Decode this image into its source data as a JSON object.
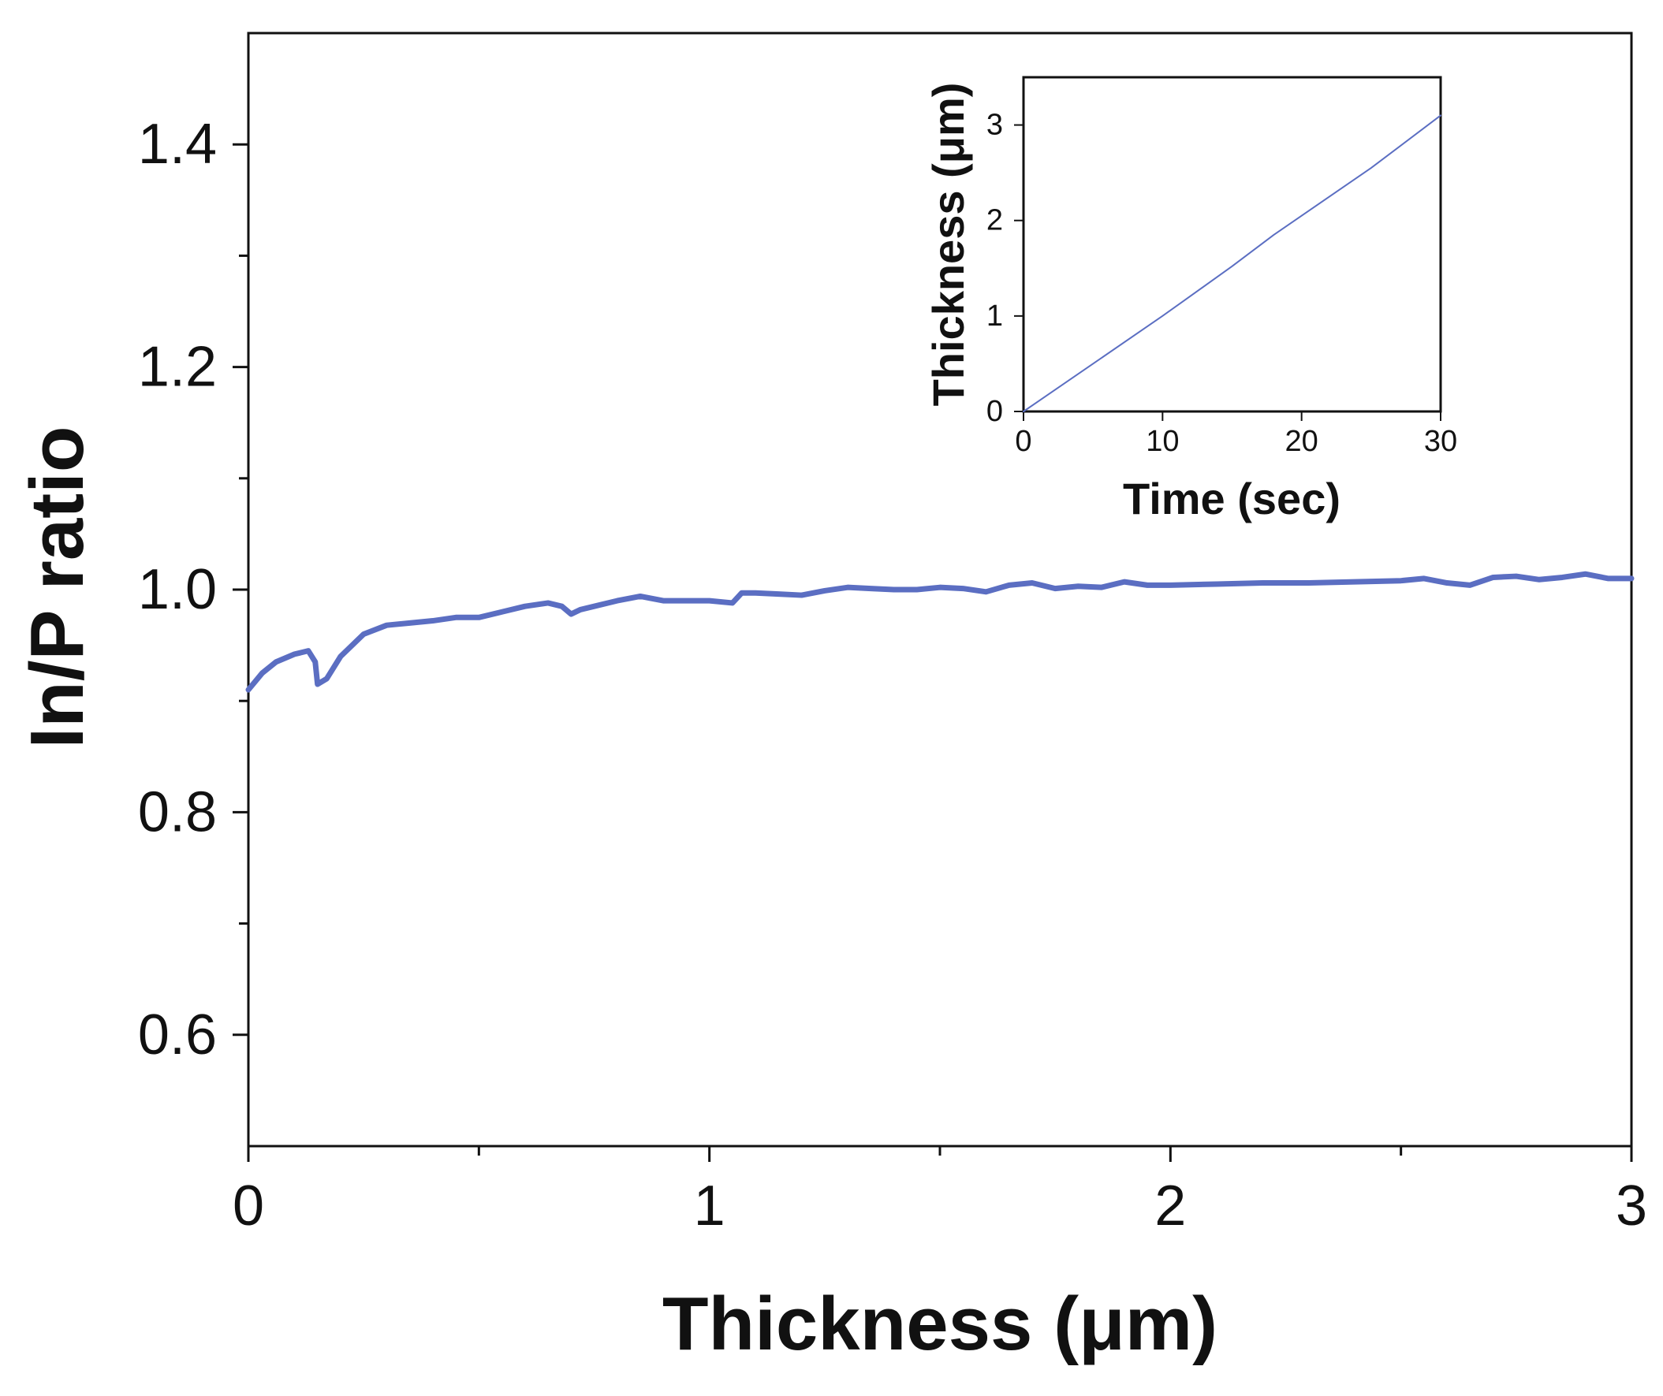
{
  "chart_data": [
    {
      "type": "line",
      "title": "",
      "xlabel": "Thickness (μm)",
      "ylabel": "In/P ratio",
      "xlim": [
        0,
        3
      ],
      "ylim": [
        0.5,
        1.5
      ],
      "xticks": [
        0,
        1,
        2,
        3
      ],
      "xtick_labels": [
        "0",
        "1",
        "2",
        "3"
      ],
      "yticks": [
        0.6,
        0.8,
        1.0,
        1.2,
        1.4
      ],
      "ytick_labels": [
        "0.6",
        "0.8",
        "1.0",
        "1.2",
        "1.4"
      ],
      "grid": false,
      "series": [
        {
          "name": "In/P ratio",
          "color": "#5b6ec2",
          "x": [
            0.0,
            0.03,
            0.06,
            0.1,
            0.13,
            0.145,
            0.15,
            0.17,
            0.2,
            0.25,
            0.3,
            0.35,
            0.4,
            0.45,
            0.5,
            0.55,
            0.6,
            0.65,
            0.68,
            0.7,
            0.72,
            0.75,
            0.8,
            0.85,
            0.9,
            0.95,
            1.0,
            1.05,
            1.07,
            1.1,
            1.15,
            1.2,
            1.25,
            1.3,
            1.35,
            1.4,
            1.45,
            1.5,
            1.55,
            1.6,
            1.65,
            1.7,
            1.75,
            1.8,
            1.85,
            1.9,
            1.95,
            2.0,
            2.1,
            2.2,
            2.3,
            2.4,
            2.5,
            2.55,
            2.6,
            2.65,
            2.7,
            2.75,
            2.8,
            2.85,
            2.9,
            2.95,
            3.0
          ],
          "values": [
            0.91,
            0.925,
            0.935,
            0.942,
            0.945,
            0.935,
            0.915,
            0.92,
            0.94,
            0.96,
            0.968,
            0.97,
            0.972,
            0.975,
            0.975,
            0.98,
            0.985,
            0.988,
            0.985,
            0.978,
            0.982,
            0.985,
            0.99,
            0.994,
            0.99,
            0.99,
            0.99,
            0.988,
            0.997,
            0.997,
            0.996,
            0.995,
            0.999,
            1.002,
            1.001,
            1.0,
            1.0,
            1.002,
            1.001,
            0.998,
            1.004,
            1.006,
            1.001,
            1.003,
            1.002,
            1.007,
            1.004,
            1.004,
            1.005,
            1.006,
            1.006,
            1.007,
            1.008,
            1.01,
            1.006,
            1.004,
            1.011,
            1.012,
            1.009,
            1.011,
            1.014,
            1.01,
            1.01
          ]
        }
      ]
    },
    {
      "type": "line",
      "title": "",
      "xlabel": "Time (sec)",
      "ylabel": "Thickness (μm)",
      "xlim": [
        0,
        30
      ],
      "ylim": [
        0,
        3.5
      ],
      "xticks": [
        0,
        10,
        20,
        30
      ],
      "xtick_labels": [
        "0",
        "10",
        "20",
        "30"
      ],
      "yticks": [
        0,
        1,
        2,
        3
      ],
      "ytick_labels": [
        "0",
        "1",
        "2",
        "3"
      ],
      "grid": false,
      "series": [
        {
          "name": "Thickness vs time",
          "color": "#5b6ec2",
          "x": [
            0,
            5,
            10,
            15,
            18,
            20,
            25,
            30
          ],
          "values": [
            0.0,
            0.5,
            1.0,
            1.52,
            1.85,
            2.05,
            2.55,
            3.1
          ]
        }
      ]
    }
  ]
}
